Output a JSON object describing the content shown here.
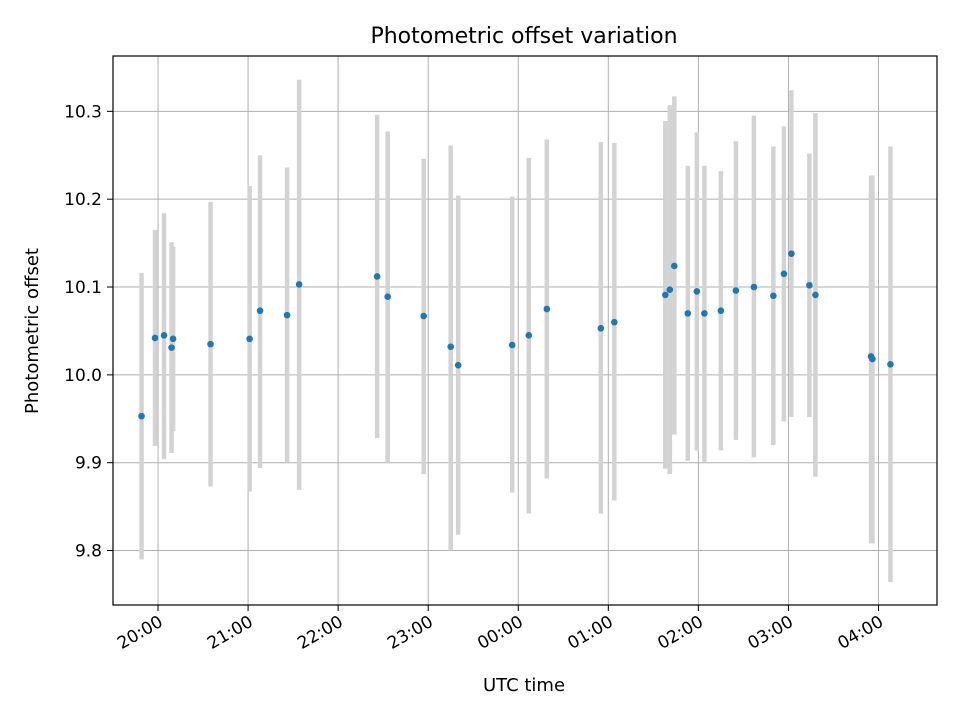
{
  "chart_data": {
    "type": "scatter",
    "title": "Photometric offset variation",
    "xlabel": "UTC time",
    "ylabel": "Photometric offset",
    "x_unit": "hours",
    "xlim": [
      19.5,
      28.65
    ],
    "ylim": [
      9.738,
      10.363
    ],
    "grid": true,
    "x_ticks": [
      {
        "value": 20,
        "label": "20:00"
      },
      {
        "value": 21,
        "label": "21:00"
      },
      {
        "value": 22,
        "label": "22:00"
      },
      {
        "value": 23,
        "label": "23:00"
      },
      {
        "value": 24,
        "label": "00:00"
      },
      {
        "value": 25,
        "label": "01:00"
      },
      {
        "value": 26,
        "label": "02:00"
      },
      {
        "value": 27,
        "label": "03:00"
      },
      {
        "value": 28,
        "label": "04:00"
      }
    ],
    "y_ticks": [
      {
        "value": 9.8,
        "label": "9.8"
      },
      {
        "value": 9.9,
        "label": "9.9"
      },
      {
        "value": 10.0,
        "label": "10.0"
      },
      {
        "value": 10.1,
        "label": "10.1"
      },
      {
        "value": 10.2,
        "label": "10.2"
      },
      {
        "value": 10.3,
        "label": "10.3"
      }
    ],
    "colors": {
      "point": "#1f77b4",
      "errorbar": "#d3d3d3",
      "grid": "#b0b0b0"
    },
    "points": [
      {
        "x": 19.817,
        "y": 9.953,
        "low": 9.79,
        "high": 10.116
      },
      {
        "x": 19.967,
        "y": 10.042,
        "low": 9.919,
        "high": 10.165
      },
      {
        "x": 20.067,
        "y": 10.045,
        "low": 9.904,
        "high": 10.184
      },
      {
        "x": 20.15,
        "y": 10.031,
        "low": 9.911,
        "high": 10.151
      },
      {
        "x": 20.167,
        "y": 10.041,
        "low": 9.936,
        "high": 10.146
      },
      {
        "x": 20.583,
        "y": 10.035,
        "low": 9.873,
        "high": 10.197
      },
      {
        "x": 21.017,
        "y": 10.041,
        "low": 9.867,
        "high": 10.215
      },
      {
        "x": 21.133,
        "y": 10.073,
        "low": 9.894,
        "high": 10.25
      },
      {
        "x": 21.433,
        "y": 10.068,
        "low": 9.9,
        "high": 10.236
      },
      {
        "x": 21.567,
        "y": 10.103,
        "low": 9.869,
        "high": 10.336
      },
      {
        "x": 22.433,
        "y": 10.112,
        "low": 9.928,
        "high": 10.296
      },
      {
        "x": 22.55,
        "y": 10.089,
        "low": 9.9,
        "high": 10.277
      },
      {
        "x": 22.95,
        "y": 10.067,
        "low": 9.887,
        "high": 10.246
      },
      {
        "x": 23.25,
        "y": 10.032,
        "low": 9.8,
        "high": 10.261
      },
      {
        "x": 23.333,
        "y": 10.011,
        "low": 9.818,
        "high": 10.204
      },
      {
        "x": 23.933,
        "y": 10.034,
        "low": 9.866,
        "high": 10.203
      },
      {
        "x": 24.117,
        "y": 10.045,
        "low": 9.842,
        "high": 10.247
      },
      {
        "x": 24.317,
        "y": 10.075,
        "low": 9.882,
        "high": 10.268
      },
      {
        "x": 24.917,
        "y": 10.053,
        "low": 9.842,
        "high": 10.265
      },
      {
        "x": 25.067,
        "y": 10.06,
        "low": 9.857,
        "high": 10.264
      },
      {
        "x": 25.633,
        "y": 10.091,
        "low": 9.893,
        "high": 10.289
      },
      {
        "x": 25.683,
        "y": 10.097,
        "low": 9.887,
        "high": 10.307
      },
      {
        "x": 25.733,
        "y": 10.124,
        "low": 9.932,
        "high": 10.317
      },
      {
        "x": 25.883,
        "y": 10.07,
        "low": 9.902,
        "high": 10.238
      },
      {
        "x": 25.983,
        "y": 10.095,
        "low": 9.914,
        "high": 10.276
      },
      {
        "x": 26.067,
        "y": 10.07,
        "low": 9.901,
        "high": 10.238
      },
      {
        "x": 26.25,
        "y": 10.073,
        "low": 9.914,
        "high": 10.232
      },
      {
        "x": 26.417,
        "y": 10.096,
        "low": 9.926,
        "high": 10.266
      },
      {
        "x": 26.617,
        "y": 10.1,
        "low": 9.906,
        "high": 10.295
      },
      {
        "x": 26.833,
        "y": 10.09,
        "low": 9.92,
        "high": 10.26
      },
      {
        "x": 26.95,
        "y": 10.115,
        "low": 9.947,
        "high": 10.283
      },
      {
        "x": 27.033,
        "y": 10.138,
        "low": 9.952,
        "high": 10.324
      },
      {
        "x": 27.233,
        "y": 10.102,
        "low": 9.952,
        "high": 10.252
      },
      {
        "x": 27.3,
        "y": 10.091,
        "low": 9.884,
        "high": 10.298
      },
      {
        "x": 27.917,
        "y": 10.021,
        "low": 9.808,
        "high": 10.227
      },
      {
        "x": 27.933,
        "y": 10.018,
        "low": 9.808,
        "high": 10.227
      },
      {
        "x": 28.133,
        "y": 10.012,
        "low": 9.764,
        "high": 10.26
      }
    ]
  }
}
